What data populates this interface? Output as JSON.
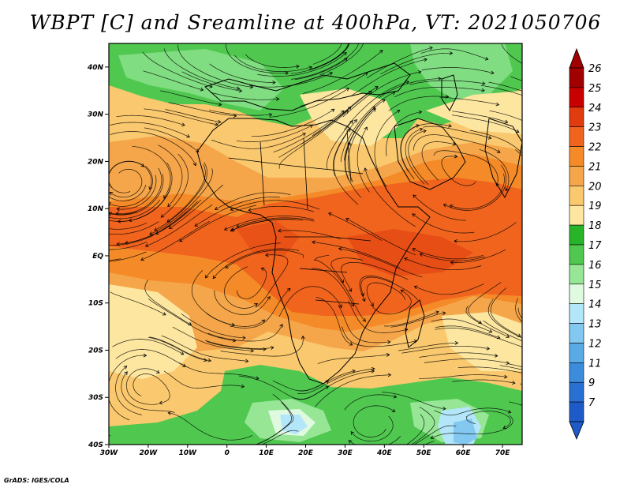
{
  "title": "WBPT [C] and Sreamline at 400hPa, VT: 2021050706",
  "credit": "GrADS: IGES/COLA",
  "map": {
    "lon_range": [
      -30,
      75
    ],
    "lat_range": [
      -40,
      45
    ],
    "lat_ticks": [
      {
        "value": 40,
        "label": "40N"
      },
      {
        "value": 30,
        "label": "30N"
      },
      {
        "value": 20,
        "label": "20N"
      },
      {
        "value": 10,
        "label": "10N"
      },
      {
        "value": 0,
        "label": "EQ"
      },
      {
        "value": -10,
        "label": "10S"
      },
      {
        "value": -20,
        "label": "20S"
      },
      {
        "value": -30,
        "label": "30S"
      },
      {
        "value": -40,
        "label": "40S"
      }
    ],
    "lon_ticks": [
      {
        "value": -30,
        "label": "30W"
      },
      {
        "value": -20,
        "label": "20W"
      },
      {
        "value": -10,
        "label": "10W"
      },
      {
        "value": 0,
        "label": "0"
      },
      {
        "value": 10,
        "label": "10E"
      },
      {
        "value": 20,
        "label": "20E"
      },
      {
        "value": 30,
        "label": "30E"
      },
      {
        "value": 40,
        "label": "40E"
      },
      {
        "value": 50,
        "label": "50E"
      },
      {
        "value": 60,
        "label": "60E"
      },
      {
        "value": 70,
        "label": "70E"
      }
    ]
  },
  "colorbar": {
    "levels": [
      {
        "label": "26",
        "color": "#a00000"
      },
      {
        "label": "25",
        "color": "#c80000"
      },
      {
        "label": "24",
        "color": "#e03c10"
      },
      {
        "label": "23",
        "color": "#f0641e"
      },
      {
        "label": "22",
        "color": "#f58a28"
      },
      {
        "label": "21",
        "color": "#f5a64a"
      },
      {
        "label": "20",
        "color": "#fac86e"
      },
      {
        "label": "19",
        "color": "#fde6a0"
      },
      {
        "label": "18",
        "color": "#28b428"
      },
      {
        "label": "17",
        "color": "#50c850"
      },
      {
        "label": "16",
        "color": "#96e696"
      },
      {
        "label": "15",
        "color": "#e0fae0"
      },
      {
        "label": "14",
        "color": "#b4e6fa"
      },
      {
        "label": "13",
        "color": "#82c8f0"
      },
      {
        "label": "12",
        "color": "#5aaae6"
      },
      {
        "label": "11",
        "color": "#3c8cdc"
      },
      {
        "label": "9",
        "color": "#2870d2"
      },
      {
        "label": "7",
        "color": "#1e5ac8"
      }
    ],
    "over_color": "#a00000",
    "under_color": "#1e5ac8"
  }
}
